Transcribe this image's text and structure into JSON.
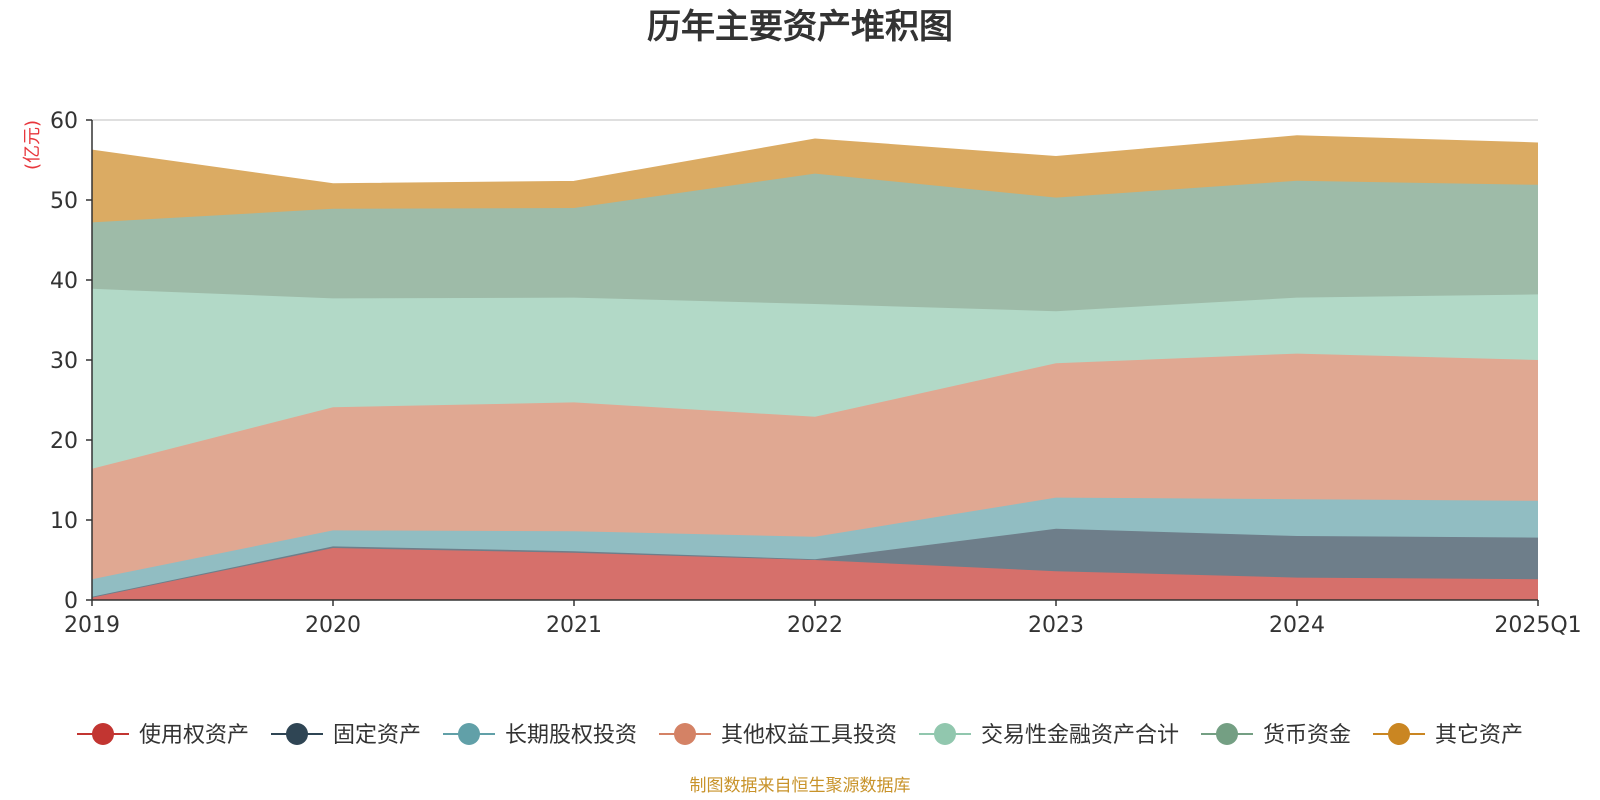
{
  "chart_data": {
    "type": "area",
    "stacked": true,
    "title": "历年主要资产堆积图",
    "ylabel": "(亿元)",
    "ylim": [
      0,
      60
    ],
    "yticks": [
      0,
      10,
      20,
      30,
      40,
      50,
      60
    ],
    "grid": true,
    "legend_position": "bottom",
    "categories": [
      "2019",
      "2020",
      "2021",
      "2022",
      "2023",
      "2024",
      "2025Q1"
    ],
    "series": [
      {
        "name": "使用权资产",
        "color": "#c23531",
        "area_color": "#d6706b",
        "values": [
          0.3,
          6.5,
          5.9,
          5.0,
          3.6,
          2.8,
          2.6
        ]
      },
      {
        "name": "固定资产",
        "color": "#2f4554",
        "area_color": "#6e7e8a",
        "values": [
          0.1,
          0.2,
          0.2,
          0.1,
          5.3,
          5.2,
          5.2
        ]
      },
      {
        "name": "长期股权投资",
        "color": "#61a0a8",
        "area_color": "#91bdc2",
        "values": [
          2.2,
          2.0,
          2.5,
          2.8,
          3.9,
          4.6,
          4.6
        ]
      },
      {
        "name": "其他权益工具投资",
        "color": "#d48265",
        "area_color": "#e0a892",
        "values": [
          13.8,
          15.4,
          16.1,
          15.0,
          16.8,
          18.2,
          17.6
        ]
      },
      {
        "name": "交易性金融资产合计",
        "color": "#91c7ae",
        "area_color": "#b2d9c7",
        "values": [
          22.5,
          13.6,
          13.1,
          14.1,
          6.5,
          7.0,
          8.2
        ]
      },
      {
        "name": "货币资金",
        "color": "#749f83",
        "area_color": "#9ebba8",
        "values": [
          8.3,
          11.2,
          11.2,
          16.3,
          14.2,
          14.6,
          13.7
        ]
      },
      {
        "name": "其它资产",
        "color": "#ca8622",
        "area_color": "#dbab63",
        "values": [
          9.0,
          3.1,
          3.3,
          4.3,
          5.1,
          5.6,
          5.2
        ]
      }
    ],
    "source_note": "制图数据来自恒生聚源数据库"
  }
}
